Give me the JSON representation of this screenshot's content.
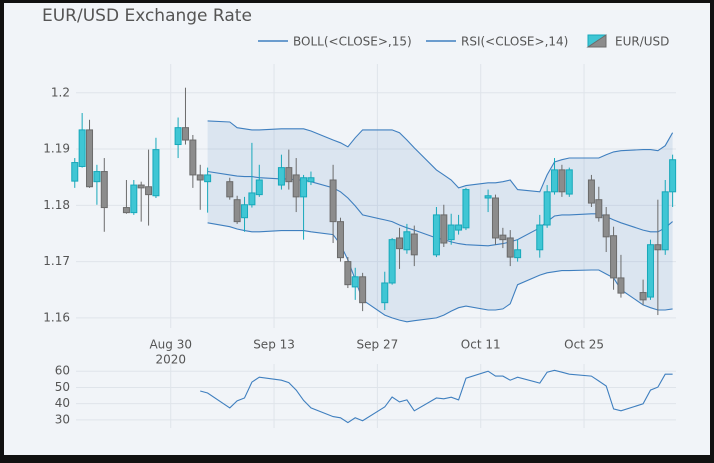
{
  "chart_data": [
    {
      "type": "candlestick",
      "title": "EUR/USD Exchange Rate",
      "x": [
        "2020-08-17",
        "2020-08-18",
        "2020-08-19",
        "2020-08-20",
        "2020-08-21",
        "2020-08-24",
        "2020-08-25",
        "2020-08-26",
        "2020-08-27",
        "2020-08-28",
        "2020-08-31",
        "2020-09-01",
        "2020-09-02",
        "2020-09-03",
        "2020-09-04",
        "2020-09-07",
        "2020-09-08",
        "2020-09-09",
        "2020-09-10",
        "2020-09-11",
        "2020-09-14",
        "2020-09-15",
        "2020-09-16",
        "2020-09-17",
        "2020-09-18",
        "2020-09-21",
        "2020-09-22",
        "2020-09-23",
        "2020-09-24",
        "2020-09-25",
        "2020-09-28",
        "2020-09-29",
        "2020-09-30",
        "2020-10-01",
        "2020-10-02",
        "2020-10-05",
        "2020-10-06",
        "2020-10-07",
        "2020-10-08",
        "2020-10-09",
        "2020-10-12",
        "2020-10-13",
        "2020-10-14",
        "2020-10-15",
        "2020-10-16",
        "2020-10-19",
        "2020-10-20",
        "2020-10-21",
        "2020-10-22",
        "2020-10-23",
        "2020-10-26",
        "2020-10-27",
        "2020-10-28",
        "2020-10-29",
        "2020-10-30",
        "2020-11-02",
        "2020-11-03",
        "2020-11-04",
        "2020-11-05",
        "2020-11-06"
      ],
      "series": [
        {
          "name": "EUR/USD",
          "increasing_color": "#3fc6d4",
          "increasing_line": "#17a8ba",
          "decreasing_color": "#8c8c8c",
          "decreasing_line": "#6b6b6b",
          "open": [
            1.1843,
            1.1869,
            1.1934,
            1.1842,
            1.186,
            1.1796,
            1.1787,
            1.1836,
            1.1833,
            1.1817,
            1.1908,
            1.1938,
            1.1916,
            1.1854,
            1.1842,
            1.1842,
            1.181,
            1.1778,
            1.1801,
            1.1819,
            1.1836,
            1.1867,
            1.1854,
            1.1815,
            1.1842,
            1.1845,
            1.1771,
            1.17,
            1.1655,
            1.1673,
            1.1627,
            1.1662,
            1.1742,
            1.1721,
            1.1749,
            1.1712,
            1.1783,
            1.1739,
            1.1756,
            1.176,
            1.1813,
            1.1813,
            1.1747,
            1.1742,
            1.1707,
            1.1721,
            1.1765,
            1.1824,
            1.1863,
            1.182,
            1.1845,
            1.181,
            1.1783,
            1.1746,
            1.1671,
            1.1645,
            1.1637,
            1.173,
            1.1721,
            1.1824
          ],
          "high": [
            1.1884,
            1.1964,
            1.1952,
            1.1872,
            1.1884,
            1.1845,
            1.1845,
            1.1842,
            1.1899,
            1.192,
            1.1956,
            1.2009,
            1.1925,
            1.1872,
            1.1867,
            1.1849,
            1.1817,
            1.1815,
            1.1911,
            1.1872,
            1.189,
            1.1899,
            1.1884,
            1.1854,
            1.186,
            1.1872,
            1.1778,
            1.1708,
            1.1689,
            1.168,
            1.1682,
            1.1742,
            1.176,
            1.1767,
            1.1764,
            1.1797,
            1.1801,
            1.1785,
            1.1783,
            1.1831,
            1.1828,
            1.1819,
            1.176,
            1.1756,
            1.1739,
            1.1783,
            1.1836,
            1.1884,
            1.1872,
            1.1867,
            1.1854,
            1.1833,
            1.1797,
            1.1762,
            1.1712,
            1.1668,
            1.1739,
            1.181,
            1.1845,
            1.189
          ],
          "low": [
            1.1831,
            1.1867,
            1.1831,
            1.1801,
            1.1753,
            1.1785,
            1.1783,
            1.1771,
            1.1764,
            1.1813,
            1.1884,
            1.1908,
            1.1831,
            1.1792,
            1.1787,
            1.181,
            1.1767,
            1.1753,
            1.1796,
            1.1815,
            1.1828,
            1.1828,
            1.1788,
            1.1739,
            1.1836,
            1.1733,
            1.17,
            1.1653,
            1.1632,
            1.1612,
            1.1614,
            1.1659,
            1.1687,
            1.1714,
            1.1692,
            1.1708,
            1.1726,
            1.173,
            1.1748,
            1.1756,
            1.1788,
            1.173,
            1.1724,
            1.1692,
            1.17,
            1.1707,
            1.176,
            1.1819,
            1.1815,
            1.1815,
            1.1797,
            1.1771,
            1.1717,
            1.165,
            1.1636,
            1.1623,
            1.1632,
            1.1605,
            1.1712,
            1.1797
          ],
          "close": [
            1.1876,
            1.1934,
            1.1833,
            1.186,
            1.1796,
            1.1787,
            1.1836,
            1.1831,
            1.1819,
            1.1899,
            1.1938,
            1.1916,
            1.1854,
            1.1845,
            1.1854,
            1.1815,
            1.1771,
            1.1801,
            1.1822,
            1.1845,
            1.1867,
            1.1842,
            1.1815,
            1.1849,
            1.1849,
            1.1771,
            1.1707,
            1.1659,
            1.1673,
            1.1627,
            1.1662,
            1.1739,
            1.1723,
            1.1753,
            1.1712,
            1.1783,
            1.1733,
            1.1765,
            1.1765,
            1.1828,
            1.1817,
            1.1742,
            1.1739,
            1.1708,
            1.1721,
            1.1765,
            1.1824,
            1.1863,
            1.1824,
            1.1863,
            1.1804,
            1.1778,
            1.1744,
            1.1671,
            1.1644,
            1.1632,
            1.173,
            1.1721,
            1.1824,
            1.1881
          ]
        },
        {
          "name": "BOLL(<CLOSE>,15)",
          "color": "#3f7fbf",
          "fill": "rgba(63,127,191,0.12)",
          "upper": [
            null,
            null,
            null,
            null,
            null,
            null,
            null,
            null,
            null,
            null,
            null,
            null,
            null,
            null,
            1.195,
            1.1948,
            1.1938,
            1.1936,
            1.1934,
            1.1934,
            1.1936,
            1.1936,
            1.1936,
            1.1936,
            1.1932,
            1.1916,
            1.1911,
            1.1904,
            1.192,
            1.1934,
            1.1934,
            1.1934,
            1.1929,
            1.1916,
            1.1902,
            1.1863,
            1.1854,
            1.1845,
            1.1831,
            1.1835,
            1.184,
            1.184,
            1.1842,
            1.1845,
            1.1828,
            1.1824,
            1.1854,
            1.1877,
            1.1881,
            1.1884,
            1.1884,
            1.1884,
            1.189,
            1.1895,
            1.1897,
            1.1899,
            1.1899,
            1.1897,
            1.1906,
            1.1929
          ],
          "middle": [
            null,
            null,
            null,
            null,
            null,
            null,
            null,
            null,
            null,
            null,
            null,
            null,
            null,
            null,
            1.186,
            1.1854,
            1.1852,
            1.1851,
            1.1851,
            1.1849,
            1.1847,
            1.1847,
            1.1845,
            1.1845,
            1.1842,
            1.1831,
            1.1824,
            1.1813,
            1.1799,
            1.1783,
            1.1774,
            1.1771,
            1.1765,
            1.176,
            1.1756,
            1.1742,
            1.1739,
            1.1735,
            1.1732,
            1.173,
            1.1728,
            1.173,
            1.1732,
            1.1735,
            1.1739,
            1.176,
            1.1771,
            1.1781,
            1.1783,
            1.1783,
            1.1785,
            1.1785,
            1.178,
            1.1774,
            1.1769,
            1.1756,
            1.1753,
            1.1753,
            1.176,
            1.1771
          ],
          "lower": [
            null,
            null,
            null,
            null,
            null,
            null,
            null,
            null,
            null,
            null,
            null,
            null,
            null,
            null,
            1.1769,
            1.1762,
            1.1758,
            1.1755,
            1.1753,
            1.1753,
            1.1755,
            1.1755,
            1.1755,
            1.1755,
            1.1753,
            1.1748,
            1.173,
            1.1703,
            1.1668,
            1.1632,
            1.1605,
            1.16,
            1.1596,
            1.1593,
            1.1595,
            1.16,
            1.1605,
            1.1612,
            1.1618,
            1.1621,
            1.1614,
            1.1614,
            1.1616,
            1.1625,
            1.1659,
            1.1676,
            1.168,
            1.1682,
            1.1684,
            1.1684,
            1.1685,
            1.1685,
            1.1678,
            1.1671,
            1.165,
            1.1623,
            1.1618,
            1.1614,
            1.1614,
            1.1616
          ]
        }
      ],
      "xlim": [
        "2020-08-15",
        "2020-11-07"
      ],
      "xticks": [
        {
          "value": "2020-08-30",
          "label": "Aug 30"
        },
        {
          "value": "2020-09-13",
          "label": "Sep 13"
        },
        {
          "value": "2020-09-27",
          "label": "Sep 27"
        },
        {
          "value": "2020-10-11",
          "label": "Oct 11"
        },
        {
          "value": "2020-10-25",
          "label": "Oct 25"
        }
      ],
      "year_label": "2020",
      "ylim": [
        1.1582,
        1.2044
      ],
      "yticks": [
        1.16,
        1.17,
        1.18,
        1.19,
        1.2
      ],
      "grid": true
    },
    {
      "type": "line",
      "series": [
        {
          "name": "RSI(<CLOSE>,14)",
          "color": "#3f7fbf",
          "values": [
            null,
            null,
            null,
            null,
            null,
            null,
            null,
            null,
            null,
            null,
            null,
            null,
            null,
            47.8,
            46.6,
            37.4,
            41.7,
            43.5,
            53.3,
            56.3,
            54.5,
            53,
            48.4,
            42,
            37.4,
            32,
            31.3,
            28.3,
            31.3,
            29.5,
            38,
            44.1,
            41.1,
            42.3,
            35.6,
            43.5,
            43,
            44,
            42.3,
            55.7,
            60,
            57,
            57,
            54.5,
            56.3,
            52.7,
            59.4,
            60.6,
            59.4,
            58.2,
            57,
            54,
            50.9,
            36.8,
            35.6,
            39.9,
            48.4,
            50.2,
            58.2,
            58.2
          ]
        }
      ],
      "ylim": [
        25,
        62
      ],
      "yticks": [
        30,
        40,
        50,
        60
      ],
      "grid": true
    }
  ]
}
